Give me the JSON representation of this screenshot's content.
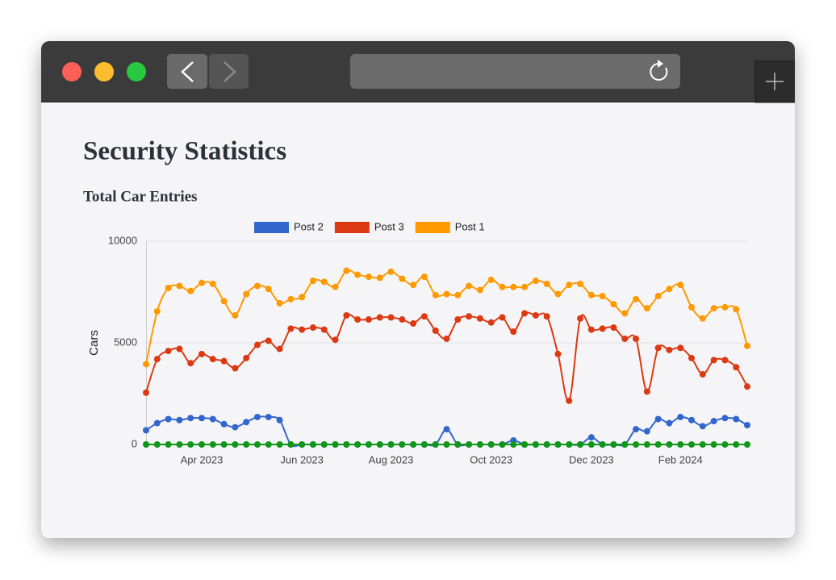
{
  "page": {
    "heading": "Security Statistics",
    "subheading": "Total Car Entries"
  },
  "chart_data": {
    "type": "line",
    "y_label": "Cars",
    "categories": [
      null,
      null,
      null,
      null,
      null,
      "Apr 2023",
      null,
      null,
      null,
      null,
      null,
      null,
      null,
      null,
      "Jun 2023",
      null,
      null,
      null,
      null,
      null,
      null,
      null,
      "Aug 2023",
      null,
      null,
      null,
      null,
      null,
      null,
      null,
      null,
      "Oct 2023",
      null,
      null,
      null,
      null,
      null,
      null,
      null,
      null,
      "Dec 2023",
      null,
      null,
      null,
      null,
      null,
      null,
      null,
      "Feb 2024",
      null,
      null,
      null,
      null,
      null,
      null
    ],
    "series": [
      {
        "name": "Post 2",
        "color": "#3366cc",
        "values": [
          700,
          1050,
          1250,
          1200,
          1300,
          1300,
          1250,
          1000,
          850,
          1100,
          1350,
          1350,
          1200,
          0,
          0,
          0,
          0,
          0,
          0,
          0,
          0,
          0,
          0,
          0,
          0,
          0,
          0,
          750,
          0,
          0,
          0,
          0,
          0,
          200,
          0,
          0,
          0,
          0,
          0,
          0,
          350,
          0,
          0,
          0,
          750,
          650,
          1250,
          1050,
          1350,
          1200,
          900,
          1150,
          1300,
          1250,
          950
        ]
      },
      {
        "name": "Post 3",
        "color": "#dc3912",
        "values": [
          2550,
          4200,
          4600,
          4700,
          4000,
          4450,
          4200,
          4100,
          3750,
          4250,
          4900,
          5100,
          4700,
          5700,
          5650,
          5750,
          5650,
          5150,
          6350,
          6150,
          6150,
          6250,
          6250,
          6150,
          5950,
          6300,
          5600,
          5200,
          6150,
          6300,
          6200,
          6000,
          6250,
          5550,
          6450,
          6350,
          6300,
          4450,
          2150,
          6200,
          5650,
          5700,
          5750,
          5200,
          5200,
          2600,
          4750,
          4650,
          4750,
          4250,
          3450,
          4150,
          4150,
          3800,
          2850
        ]
      },
      {
        "name": "Post 1",
        "color": "#ff9900",
        "values": [
          3950,
          6550,
          7700,
          7800,
          7550,
          7950,
          7900,
          7050,
          6350,
          7400,
          7800,
          7650,
          6950,
          7150,
          7250,
          8050,
          8000,
          7750,
          8550,
          8350,
          8250,
          8200,
          8500,
          8150,
          7850,
          8250,
          7350,
          7400,
          7350,
          7800,
          7600,
          8100,
          7750,
          7750,
          7750,
          8050,
          7900,
          7400,
          7850,
          7900,
          7350,
          7300,
          6900,
          6450,
          7150,
          6700,
          7300,
          7650,
          7850,
          6750,
          6200,
          6700,
          6750,
          6650,
          4850
        ]
      },
      {
        "color": "#109618",
        "values": [
          0,
          0,
          0,
          0,
          0,
          0,
          0,
          0,
          0,
          0,
          0,
          0,
          0,
          0,
          0,
          0,
          0,
          0,
          0,
          0,
          0,
          0,
          0,
          0,
          0,
          0,
          0,
          0,
          0,
          0,
          0,
          0,
          0,
          0,
          0,
          0,
          0,
          0,
          0,
          0,
          0,
          0,
          0,
          0,
          0,
          0,
          0,
          0,
          0,
          0,
          0,
          0,
          0,
          0,
          0
        ]
      }
    ],
    "ylim": [
      0,
      10000
    ],
    "yticks": [
      0,
      5000,
      10000
    ],
    "grid": true,
    "legend": "top",
    "smooth": true
  }
}
